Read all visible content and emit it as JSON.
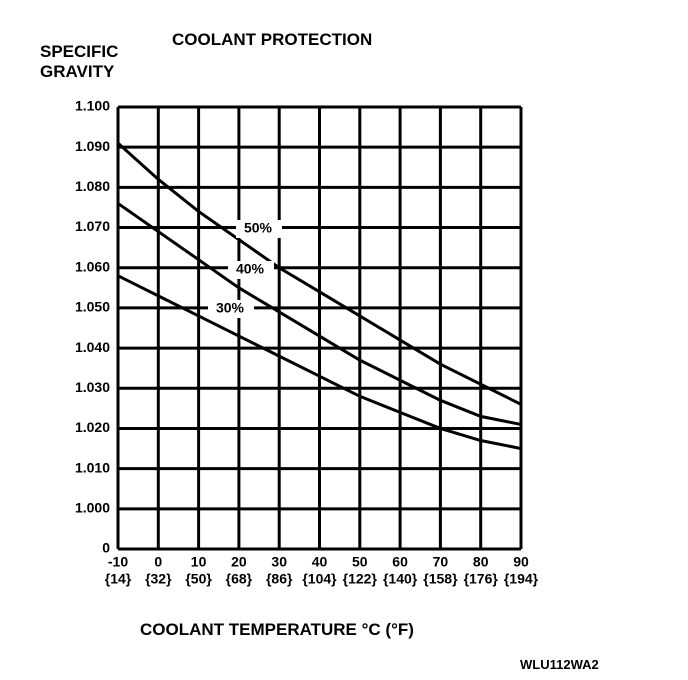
{
  "chart_data": {
    "type": "line",
    "title": "COOLANT PROTECTION",
    "ylabel": "SPECIFIC GRAVITY",
    "xlabel": "COOLANT TEMPERATURE °C (°F)",
    "footnote": "WLU112WA2",
    "x": [
      -10,
      0,
      10,
      20,
      30,
      40,
      50,
      60,
      70,
      80,
      90
    ],
    "xlim": [
      -10,
      90
    ],
    "xticks": [
      -10,
      0,
      10,
      20,
      30,
      40,
      50,
      60,
      70,
      80,
      90
    ],
    "x_secondary_labels": [
      "{14}",
      "{32}",
      "{50}",
      "{68}",
      "{86}",
      "{104}",
      "{122}",
      "{140}",
      "{158}",
      "{176}",
      "{194}"
    ],
    "ylim": [
      0,
      1.1
    ],
    "y_break": true,
    "yticks": [
      0,
      {
        "value": 1.0,
        "label": "1.000"
      },
      {
        "value": 1.01,
        "label": "1.010"
      },
      {
        "value": 1.02,
        "label": "1.020"
      },
      {
        "value": 1.03,
        "label": "1.030"
      },
      {
        "value": 1.04,
        "label": "1.040"
      },
      {
        "value": 1.05,
        "label": "1.050"
      },
      {
        "value": 1.06,
        "label": "1.060"
      },
      {
        "value": 1.07,
        "label": "1.070"
      },
      {
        "value": 1.08,
        "label": "1.080"
      },
      {
        "value": 1.09,
        "label": "1.090"
      },
      {
        "value": 1.1,
        "label": "1.100"
      }
    ],
    "grid": true,
    "series": [
      {
        "name": "50%",
        "color": "#000000",
        "values": [
          1.091,
          1.082,
          1.074,
          1.067,
          1.06,
          1.054,
          1.048,
          1.042,
          1.036,
          1.031,
          1.026
        ]
      },
      {
        "name": "40%",
        "color": "#000000",
        "values": [
          1.076,
          1.069,
          1.062,
          1.055,
          1.049,
          1.043,
          1.037,
          1.032,
          1.027,
          1.023,
          1.021
        ]
      },
      {
        "name": "30%",
        "color": "#000000",
        "values": [
          1.058,
          1.053,
          1.048,
          1.043,
          1.038,
          1.033,
          1.028,
          1.024,
          1.02,
          1.017,
          1.015
        ]
      }
    ]
  }
}
